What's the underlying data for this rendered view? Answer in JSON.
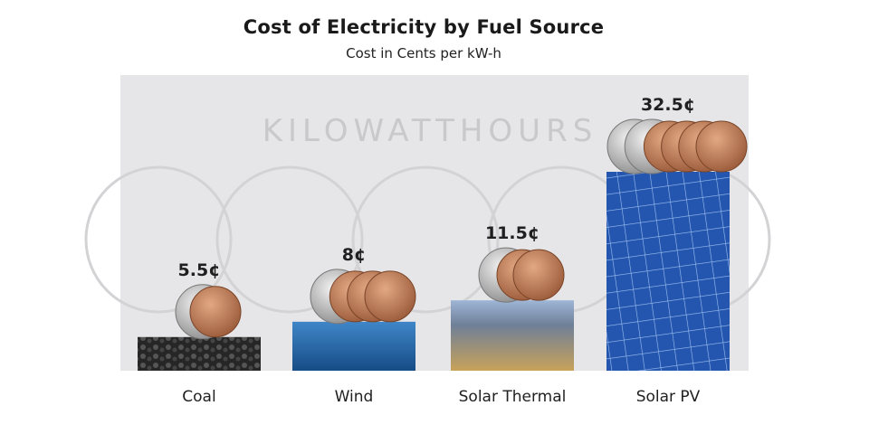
{
  "chart_data": {
    "type": "bar",
    "title": "Cost of Electricity by Fuel Source",
    "subtitle": "Cost in Cents per kW-h",
    "categories": [
      "Coal",
      "Wind",
      "Solar Thermal",
      "Solar PV"
    ],
    "values": [
      5.5,
      8,
      11.5,
      32.5
    ],
    "value_labels": [
      "5.5¢",
      "8¢",
      "11.5¢",
      "32.5¢"
    ],
    "ylim": [
      0,
      34
    ],
    "background_text": "KILOWATTHOURS",
    "grid": false,
    "legend": "none"
  },
  "colors": {
    "panel": "#e6e6e8",
    "coal": "#2a2a2a",
    "wind": "#1f63a8",
    "solar_thermal": "#7a8fb0",
    "solar_pv": "#2456b0"
  }
}
